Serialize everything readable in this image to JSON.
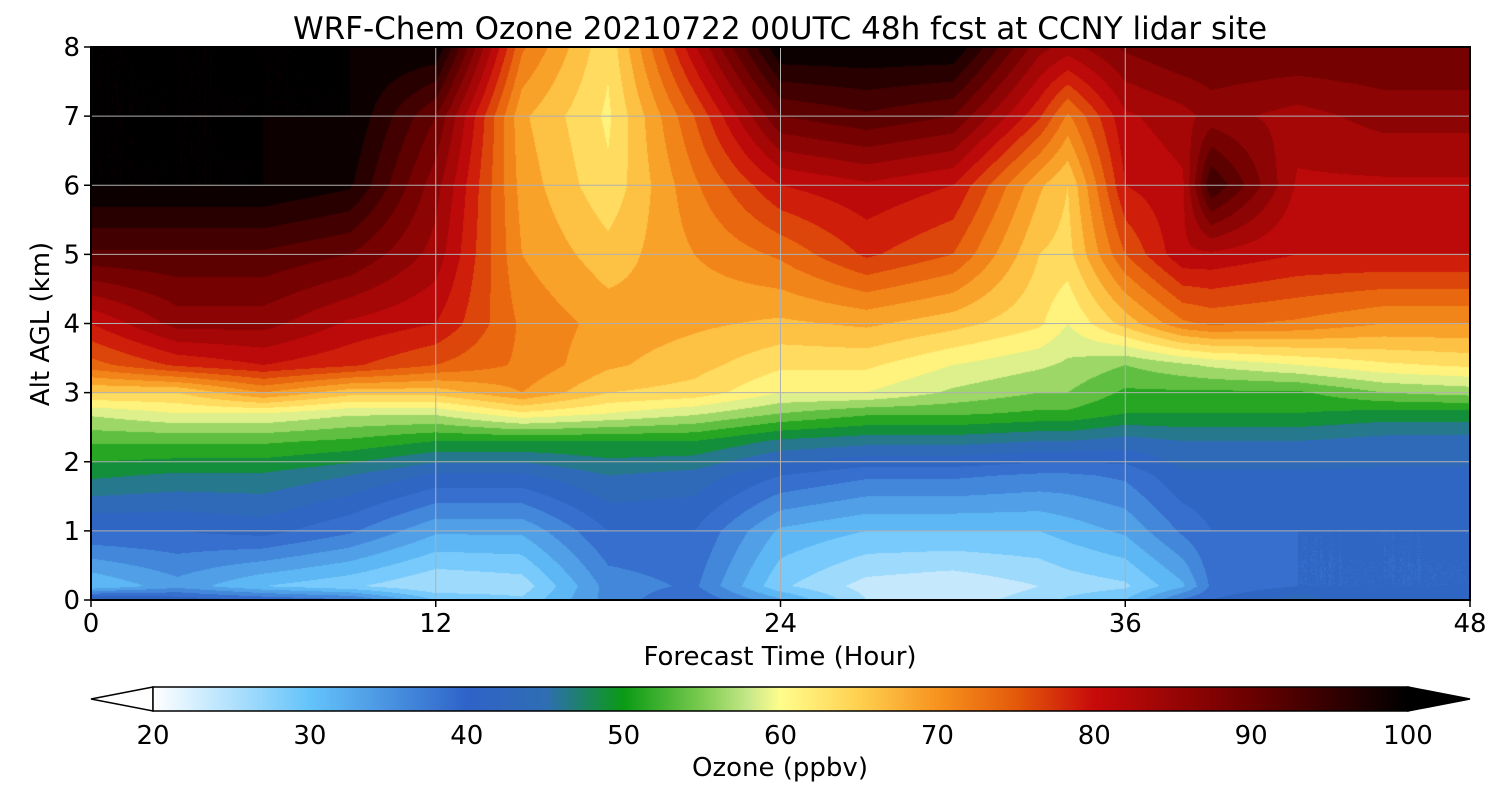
{
  "chart_data": {
    "type": "heatmap",
    "title": "WRF-Chem Ozone  20210722 00UTC 48h fcst at CCNY lidar site",
    "xlabel": "Forecast Time (Hour)",
    "ylabel": "Alt AGL (km)",
    "xlim": [
      0,
      48
    ],
    "ylim": [
      0,
      8
    ],
    "xticks": [
      0,
      12,
      24,
      36,
      48
    ],
    "yticks": [
      0,
      1,
      2,
      3,
      4,
      5,
      6,
      7,
      8
    ],
    "grid": true,
    "colorbar": {
      "label": "Ozone  (ppbv)",
      "min": 20,
      "max": 100,
      "ticks": [
        20,
        30,
        40,
        50,
        60,
        70,
        80,
        90,
        100
      ],
      "extend": "both",
      "stops": [
        {
          "v": 20,
          "c": "#ffffff"
        },
        {
          "v": 30,
          "c": "#64c3fa"
        },
        {
          "v": 40,
          "c": "#2f63c8"
        },
        {
          "v": 45,
          "c": "#2f6db4"
        },
        {
          "v": 50,
          "c": "#0a9a14"
        },
        {
          "v": 55,
          "c": "#7ccb50"
        },
        {
          "v": 58,
          "c": "#c8e88a"
        },
        {
          "v": 60,
          "c": "#fffd8c"
        },
        {
          "v": 65,
          "c": "#ffd050"
        },
        {
          "v": 70,
          "c": "#f7931e"
        },
        {
          "v": 75,
          "c": "#e45a0a"
        },
        {
          "v": 80,
          "c": "#c80a0a"
        },
        {
          "v": 90,
          "c": "#6a0000"
        },
        {
          "v": 100,
          "c": "#000000"
        }
      ],
      "under_color": "#ffffff",
      "over_color": "#000000"
    },
    "hours": [
      0,
      3,
      6,
      9,
      12,
      15,
      18,
      21,
      24,
      27,
      30,
      33,
      34,
      36,
      38,
      39,
      42,
      45,
      48
    ],
    "altitudes_km": [
      0,
      0.2,
      1,
      1.8,
      2.3,
      2.7,
      3,
      3.4,
      4,
      5,
      6,
      7,
      8
    ],
    "ozone_ppbv": [
      [
        44,
        30,
        40,
        48,
        53,
        58,
        65,
        74,
        80,
        92,
        100,
        100,
        100
      ],
      [
        42,
        34,
        40,
        47,
        53,
        60,
        65,
        78,
        86,
        92,
        100,
        100,
        100
      ],
      [
        40,
        30,
        41,
        47,
        53,
        60,
        70,
        80,
        86,
        92,
        100,
        100,
        100
      ],
      [
        38,
        28,
        38,
        45,
        52,
        58,
        66,
        78,
        82,
        90,
        98,
        100,
        100
      ],
      [
        30,
        25,
        33,
        42,
        50,
        58,
        66,
        75,
        80,
        84,
        86,
        90,
        100
      ],
      [
        28,
        26,
        33,
        42,
        50,
        62,
        70,
        72,
        72,
        70,
        69,
        68,
        73
      ],
      [
        36,
        36,
        40,
        45,
        50,
        60,
        65,
        68,
        69,
        66,
        63,
        62,
        63
      ],
      [
        40,
        38,
        40,
        44,
        50,
        58,
        64,
        66,
        68,
        70,
        72,
        75,
        82
      ],
      [
        33,
        28,
        32,
        40,
        47,
        55,
        60,
        63,
        67,
        73,
        80,
        90,
        100
      ],
      [
        25,
        24,
        30,
        38,
        46,
        53,
        60,
        63,
        68,
        78,
        82,
        92,
        100
      ],
      [
        24,
        23,
        30,
        38,
        46,
        53,
        57,
        60,
        66,
        75,
        80,
        90,
        100
      ],
      [
        26,
        25,
        30,
        37,
        45,
        52,
        55,
        58,
        63,
        65,
        68,
        78,
        86
      ],
      [
        28,
        26,
        31,
        37,
        45,
        52,
        55,
        57,
        60,
        64,
        65,
        72,
        84
      ],
      [
        30,
        27,
        33,
        38,
        44,
        50,
        52,
        55,
        66,
        75,
        80,
        82,
        88
      ],
      [
        38,
        32,
        38,
        42,
        45,
        50,
        52,
        57,
        72,
        82,
        82,
        84,
        90
      ],
      [
        40,
        38,
        40,
        42,
        45,
        50,
        52,
        58,
        73,
        82,
        95,
        86,
        90
      ],
      [
        44,
        40,
        40,
        42,
        45,
        50,
        52,
        60,
        72,
        80,
        82,
        84,
        90
      ],
      [
        40,
        40,
        40,
        42,
        44,
        49,
        55,
        62,
        70,
        80,
        82,
        86,
        90
      ],
      [
        42,
        40,
        40,
        42,
        44,
        49,
        56,
        63,
        70,
        80,
        82,
        86,
        90
      ]
    ]
  }
}
